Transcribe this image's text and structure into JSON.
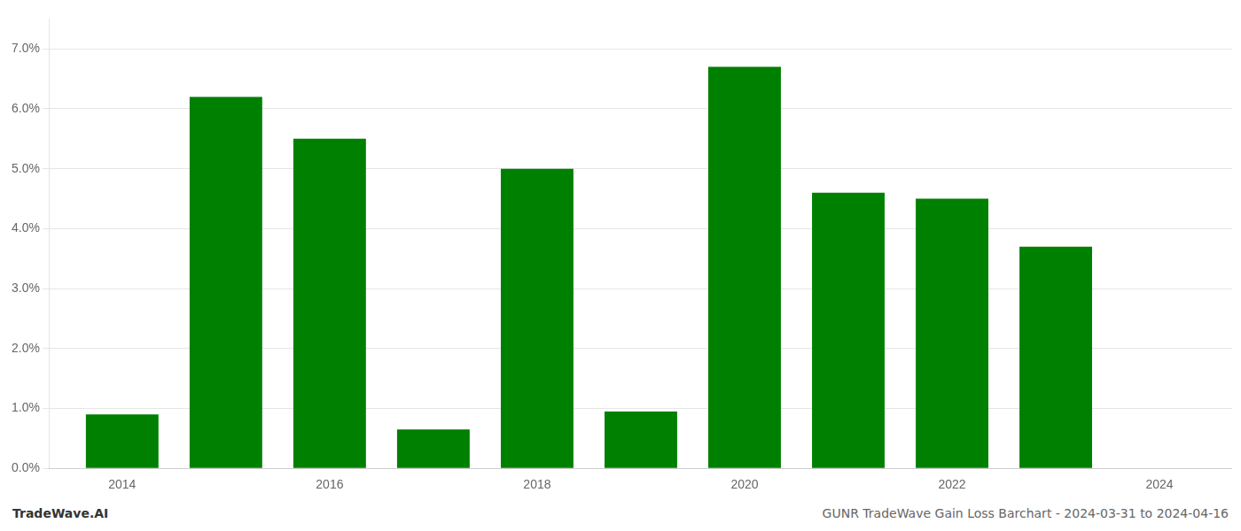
{
  "chart_data": {
    "type": "bar",
    "x": [
      2014,
      2015,
      2016,
      2017,
      2018,
      2019,
      2020,
      2021,
      2022,
      2023
    ],
    "values": [
      0.009,
      0.062,
      0.055,
      0.0065,
      0.05,
      0.0095,
      0.067,
      0.046,
      0.045,
      0.037
    ],
    "color": "#008000",
    "xlim": [
      2013.3,
      2024.7
    ],
    "xticks": [
      2014,
      2016,
      2018,
      2020,
      2022,
      2024
    ],
    "ylim": [
      0,
      0.075
    ],
    "yticks": [
      {
        "value": 0.0,
        "label": "0.0%"
      },
      {
        "value": 0.01,
        "label": "1.0%"
      },
      {
        "value": 0.02,
        "label": "2.0%"
      },
      {
        "value": 0.03,
        "label": "3.0%"
      },
      {
        "value": 0.04,
        "label": "4.0%"
      },
      {
        "value": 0.05,
        "label": "5.0%"
      },
      {
        "value": 0.06,
        "label": "6.0%"
      },
      {
        "value": 0.07,
        "label": "7.0%"
      }
    ],
    "grid": "y",
    "annotations": [
      "TradeWave.AI",
      "GUNR TradeWave Gain Loss Barchart - 2024-03-31 to 2024-04-16"
    ]
  }
}
